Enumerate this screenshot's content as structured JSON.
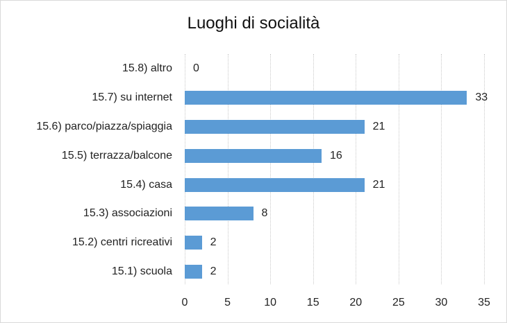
{
  "chart_data": {
    "type": "bar",
    "orientation": "horizontal",
    "title": "Luoghi di socialità",
    "xlabel": "",
    "ylabel": "",
    "categories": [
      "15.8) altro",
      "15.7) su internet",
      "15.6) parco/piazza/spiaggia",
      "15.5) terrazza/balcone",
      "15.4) casa",
      "15.3) associazioni",
      "15.2) centri ricreativi",
      "15.1) scuola"
    ],
    "values": [
      0,
      33,
      21,
      16,
      21,
      8,
      2,
      2
    ],
    "data_labels": [
      "0",
      "33",
      "21",
      "16",
      "21",
      "8",
      "2",
      "2"
    ],
    "xlim": [
      0,
      35
    ],
    "xticks": [
      "0",
      "5",
      "10",
      "15",
      "20",
      "25",
      "30",
      "35"
    ],
    "grid": true,
    "legend": "none",
    "bar_color": "#5b9bd5"
  }
}
